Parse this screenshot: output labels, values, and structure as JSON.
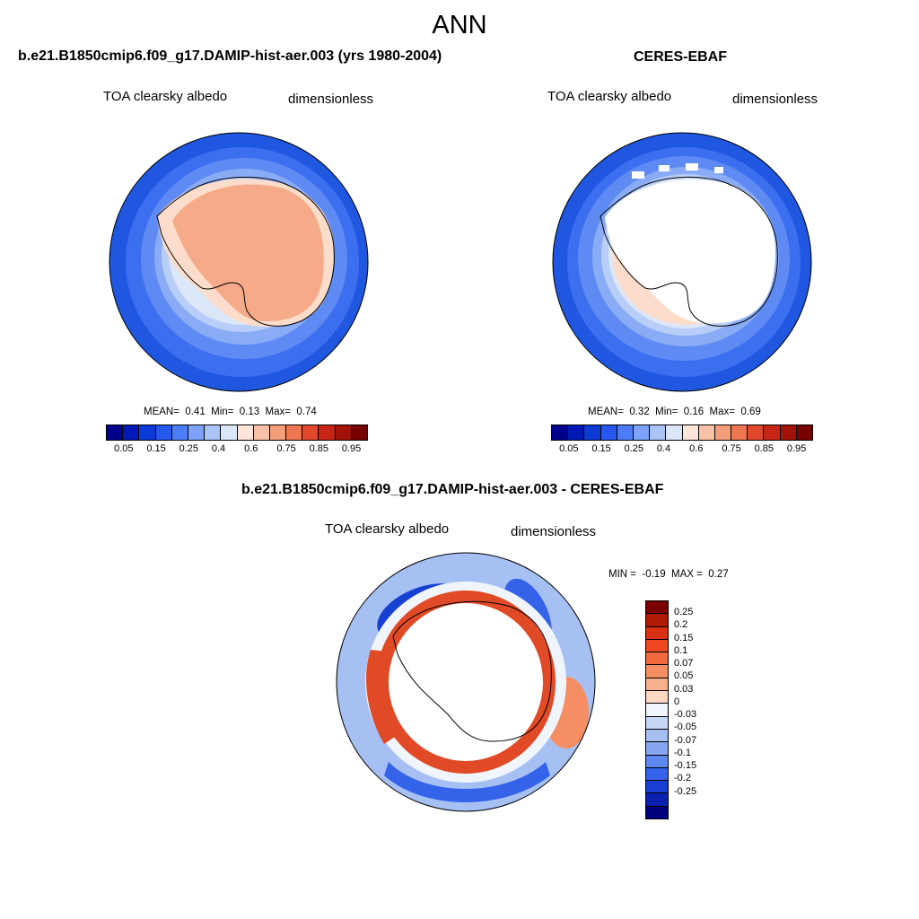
{
  "main_title": "ANN",
  "colors": {
    "seq_palette": [
      "#00008c",
      "#0018b4",
      "#0c3ad6",
      "#2657ee",
      "#4c7cf7",
      "#7ea2f9",
      "#aac4f8",
      "#dbe7f9",
      "#fde6d9",
      "#f8c2a8",
      "#f49f7c",
      "#ee7651",
      "#e2482c",
      "#c62415",
      "#a21209",
      "#780000"
    ],
    "diff_palette": [
      "#7a0000",
      "#b01a05",
      "#d83010",
      "#f04820",
      "#f06a3e",
      "#f58e62",
      "#f8b08c",
      "#fcd8c2",
      "#f0f4fb",
      "#c6d8f6",
      "#a6c0f4",
      "#86a6f2",
      "#5e88f0",
      "#3463ea",
      "#1740d2",
      "#0c20b0",
      "#00007e"
    ],
    "ocean_far": "#1f57e0",
    "land": "#f5ab8a"
  },
  "panels": {
    "model": {
      "title": "b.e21.B1850cmip6.f09_g17.DAMIP-hist-aer.003 (yrs 1980-2004)",
      "field": "TOA clearsky albedo",
      "units": "dimensionless",
      "stats": {
        "mean_label": "MEAN=",
        "mean": "0.41",
        "min_label": "Min=",
        "min": "0.13",
        "max_label": "Max=",
        "max": "0.74"
      },
      "ticks": [
        "0.05",
        "0.15",
        "0.25",
        "0.4",
        "0.6",
        "0.75",
        "0.85",
        "0.95"
      ]
    },
    "obs": {
      "title": "CERES-EBAF",
      "field": "TOA clearsky albedo",
      "units": "dimensionless",
      "stats": {
        "mean_label": "MEAN=",
        "mean": "0.32",
        "min_label": "Min=",
        "min": "0.16",
        "max_label": "Max=",
        "max": "0.69"
      },
      "ticks": [
        "0.05",
        "0.15",
        "0.25",
        "0.4",
        "0.6",
        "0.75",
        "0.85",
        "0.95"
      ]
    },
    "diff": {
      "title": "b.e21.B1850cmip6.f09_g17.DAMIP-hist-aer.003 - CERES-EBAF",
      "field": "TOA clearsky albedo",
      "units": "dimensionless",
      "stats": {
        "min_label": "MIN =",
        "min": "-0.19",
        "max_label": "MAX =",
        "max": "0.27"
      },
      "ticks": [
        "0.25",
        "0.2",
        "0.15",
        "0.1",
        "0.07",
        "0.05",
        "0.03",
        "0",
        "-0.03",
        "-0.05",
        "-0.07",
        "-0.1",
        "-0.15",
        "-0.2",
        "-0.25"
      ]
    }
  }
}
